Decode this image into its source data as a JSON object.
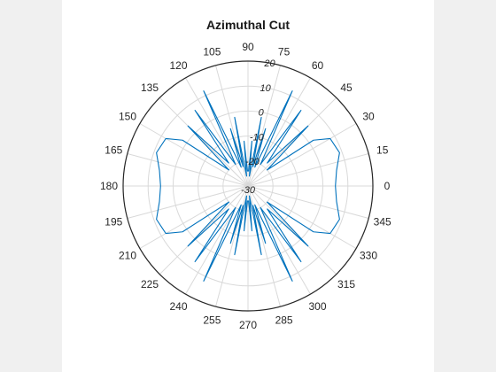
{
  "chart_data": {
    "type": "polar-line",
    "title": "Azimuthal Cut",
    "angle_unit": "degrees",
    "angle_ticks": [
      "0",
      "15",
      "30",
      "45",
      "60",
      "75",
      "90",
      "105",
      "120",
      "135",
      "150",
      "165",
      "180",
      "195",
      "210",
      "225",
      "240",
      "255",
      "270",
      "285",
      "300",
      "315",
      "330",
      "345"
    ],
    "r_ticks": [
      "-30",
      "-20",
      "-10",
      "0",
      "10",
      "20"
    ],
    "r_range": [
      -30,
      20
    ],
    "grid": true,
    "series": [
      {
        "color": "#0072bd",
        "points": [
          [
            0,
            5
          ],
          [
            10,
            6
          ],
          [
            20,
            9
          ],
          [
            30,
            8
          ],
          [
            35,
            2
          ],
          [
            40,
            -20
          ],
          [
            45,
            4
          ],
          [
            50,
            -18
          ],
          [
            55,
            7
          ],
          [
            60,
            -20
          ],
          [
            65,
            12
          ],
          [
            70,
            -22
          ],
          [
            73,
            -6
          ],
          [
            76,
            -22
          ],
          [
            79,
            -2
          ],
          [
            82,
            -26
          ],
          [
            85,
            -12
          ],
          [
            88,
            -24
          ],
          [
            92,
            -24
          ],
          [
            95,
            -12
          ],
          [
            98,
            -26
          ],
          [
            101,
            -2
          ],
          [
            104,
            -22
          ],
          [
            107,
            -6
          ],
          [
            110,
            -22
          ],
          [
            115,
            12
          ],
          [
            120,
            -20
          ],
          [
            125,
            7
          ],
          [
            130,
            -18
          ],
          [
            135,
            4
          ],
          [
            140,
            -20
          ],
          [
            145,
            2
          ],
          [
            150,
            8
          ],
          [
            160,
            9
          ],
          [
            170,
            6
          ],
          [
            180,
            5
          ],
          [
            190,
            6
          ],
          [
            200,
            9
          ],
          [
            210,
            8
          ],
          [
            215,
            2
          ],
          [
            220,
            -20
          ],
          [
            225,
            4
          ],
          [
            230,
            -18
          ],
          [
            235,
            7
          ],
          [
            240,
            -20
          ],
          [
            245,
            12
          ],
          [
            250,
            -22
          ],
          [
            253,
            -6
          ],
          [
            256,
            -22
          ],
          [
            259,
            -2
          ],
          [
            262,
            -26
          ],
          [
            265,
            -12
          ],
          [
            268,
            -24
          ],
          [
            272,
            -24
          ],
          [
            275,
            -12
          ],
          [
            278,
            -26
          ],
          [
            281,
            -2
          ],
          [
            284,
            -22
          ],
          [
            287,
            -6
          ],
          [
            290,
            -22
          ],
          [
            295,
            12
          ],
          [
            300,
            -20
          ],
          [
            305,
            7
          ],
          [
            310,
            -18
          ],
          [
            315,
            4
          ],
          [
            320,
            -20
          ],
          [
            325,
            2
          ],
          [
            330,
            8
          ],
          [
            340,
            9
          ],
          [
            350,
            6
          ],
          [
            360,
            5
          ]
        ]
      }
    ]
  }
}
